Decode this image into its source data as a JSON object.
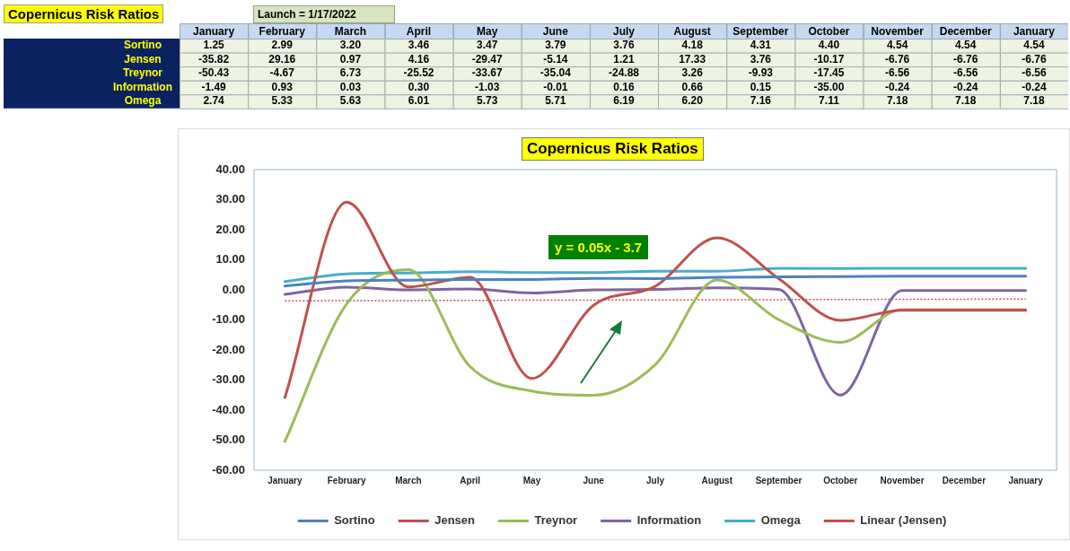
{
  "chart_data": [
    {
      "type": "heatmap",
      "title": "Copernicus Risk Ratios",
      "categories": [
        "January",
        "February",
        "March",
        "April",
        "May",
        "June",
        "July",
        "August",
        "September",
        "October",
        "November",
        "December",
        "January"
      ],
      "y_categories": [
        "Sortino",
        "Jensen",
        "Treynor",
        "Information",
        "Omega"
      ],
      "cells": [
        [
          1.25,
          2.99,
          3.2,
          3.46,
          3.47,
          3.79,
          3.76,
          4.18,
          4.31,
          4.4,
          4.54,
          4.54,
          4.54
        ],
        [
          -35.82,
          29.16,
          0.97,
          4.16,
          -29.47,
          -5.14,
          1.21,
          17.33,
          3.76,
          -10.17,
          -6.76,
          -6.76,
          -6.76
        ],
        [
          -50.43,
          -4.67,
          6.73,
          -25.52,
          -33.67,
          -35.04,
          -24.88,
          3.26,
          -9.93,
          -17.45,
          -6.56,
          -6.56,
          -6.56
        ],
        [
          -1.49,
          0.93,
          0.03,
          0.3,
          -1.03,
          -0.01,
          0.16,
          0.66,
          0.15,
          -35.0,
          -0.24,
          -0.24,
          -0.24
        ],
        [
          2.74,
          5.33,
          5.63,
          6.01,
          5.73,
          5.71,
          6.19,
          6.2,
          7.16,
          7.11,
          7.18,
          7.18,
          7.18
        ]
      ],
      "cell_labels": [
        [
          "1.25",
          "2.99",
          "3.20",
          "3.46",
          "3.47",
          "3.79",
          "3.76",
          "4.18",
          "4.31",
          "4.40",
          "4.54",
          "4.54",
          "4.54"
        ],
        [
          "-35.82",
          "29.16",
          "0.97",
          "4.16",
          "-29.47",
          "-5.14",
          "1.21",
          "17.33",
          "3.76",
          "-10.17",
          "-6.76",
          "-6.76",
          "-6.76"
        ],
        [
          "-50.43",
          "-4.67",
          "6.73",
          "-25.52",
          "-33.67",
          "-35.04",
          "-24.88",
          "3.26",
          "-9.93",
          "-17.45",
          "-6.56",
          "-6.56",
          "-6.56"
        ],
        [
          "-1.49",
          "0.93",
          "0.03",
          "0.30",
          "-1.03",
          "-0.01",
          "0.16",
          "0.66",
          "0.15",
          "-35.00",
          "-0.24",
          "-0.24",
          "-0.24"
        ],
        [
          "2.74",
          "5.33",
          "5.63",
          "6.01",
          "5.73",
          "5.71",
          "6.19",
          "6.20",
          "7.16",
          "7.11",
          "7.18",
          "7.18",
          "7.18"
        ]
      ],
      "annotations": [
        "Launch = 1/17/2022"
      ]
    },
    {
      "type": "line",
      "title": "Copernicus Risk Ratios",
      "categories": [
        "January",
        "February",
        "March",
        "April",
        "May",
        "June",
        "July",
        "August",
        "September",
        "October",
        "November",
        "December",
        "January"
      ],
      "series": [
        {
          "name": "Sortino",
          "color": "#4f81bd",
          "values": [
            1.25,
            2.99,
            3.2,
            3.46,
            3.47,
            3.79,
            3.76,
            4.18,
            4.31,
            4.4,
            4.54,
            4.54,
            4.54
          ]
        },
        {
          "name": "Jensen",
          "color": "#c0504d",
          "values": [
            -35.82,
            29.16,
            0.97,
            4.16,
            -29.47,
            -5.14,
            1.21,
            17.33,
            3.76,
            -10.17,
            -6.76,
            -6.76,
            -6.76
          ]
        },
        {
          "name": "Treynor",
          "color": "#9bbb59",
          "values": [
            -50.43,
            -4.67,
            6.73,
            -25.52,
            -33.67,
            -35.04,
            -24.88,
            3.26,
            -9.93,
            -17.45,
            -6.56,
            -6.56,
            -6.56
          ]
        },
        {
          "name": "Information",
          "color": "#8064a2",
          "values": [
            -1.49,
            0.93,
            0.03,
            0.3,
            -1.03,
            -0.01,
            0.16,
            0.66,
            0.15,
            -35.0,
            -0.24,
            -0.24,
            -0.24
          ]
        },
        {
          "name": "Omega",
          "color": "#4bacc6",
          "values": [
            2.74,
            5.33,
            5.63,
            6.01,
            5.73,
            5.71,
            6.19,
            6.2,
            7.16,
            7.11,
            7.18,
            7.18,
            7.18
          ]
        },
        {
          "name": "Linear (Jensen)",
          "type": "line",
          "line_style": "dotted",
          "color": "#c0504d",
          "values": [
            -3.65,
            -3.6,
            -3.55,
            -3.5,
            -3.45,
            -3.4,
            -3.35,
            -3.3,
            -3.25,
            -3.2,
            -3.15,
            -3.1,
            -3.05
          ]
        }
      ],
      "ylim": [
        -60,
        40
      ],
      "yticks": [
        {
          "value": -60,
          "label": "-60.00"
        },
        {
          "value": -50,
          "label": "-50.00"
        },
        {
          "value": -40,
          "label": "-40.00"
        },
        {
          "value": -30,
          "label": "-30.00"
        },
        {
          "value": -20,
          "label": "-20.00"
        },
        {
          "value": -10,
          "label": "-10.00"
        },
        {
          "value": 0,
          "label": "0.00"
        },
        {
          "value": 10,
          "label": "10.00"
        },
        {
          "value": 20,
          "label": "20.00"
        },
        {
          "value": 30,
          "label": "30.00"
        },
        {
          "value": 40,
          "label": "40.00"
        }
      ],
      "grid": false,
      "legend": "bottom",
      "marker": "none",
      "line_style": "solid",
      "annotations": [
        "y = 0.05x - 3.7"
      ]
    }
  ]
}
